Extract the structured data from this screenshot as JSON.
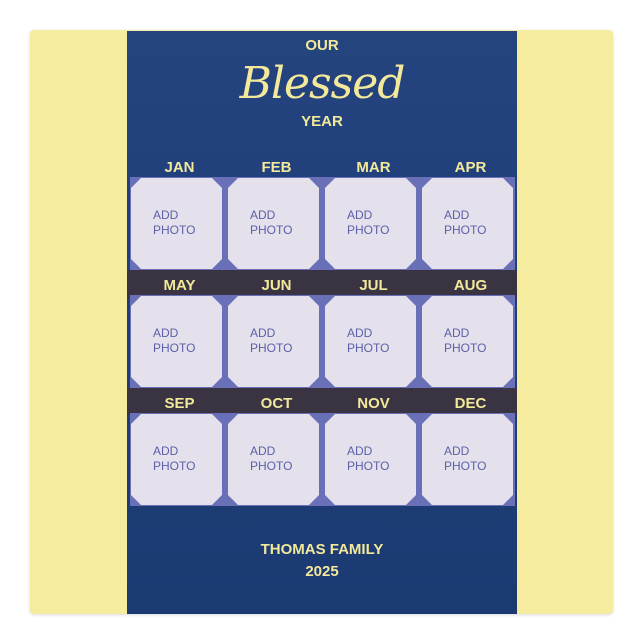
{
  "title": {
    "top": "OUR",
    "script": "Blessed",
    "bottom": "YEAR"
  },
  "months": [
    "JAN",
    "FEB",
    "MAR",
    "APR",
    "MAY",
    "JUN",
    "JUL",
    "AUG",
    "SEP",
    "OCT",
    "NOV",
    "DEC"
  ],
  "placeholder": {
    "line1": "ADD",
    "line2": "PHOTO"
  },
  "footer": {
    "name": "THOMAS FAMILY",
    "year": "2025"
  },
  "colors": {
    "coaster": "#f5ec9f",
    "panel": "#1f3f7a",
    "accent_text": "#f2e99a",
    "photo_frame": "#6a70b8",
    "divider": "#3a3442"
  }
}
